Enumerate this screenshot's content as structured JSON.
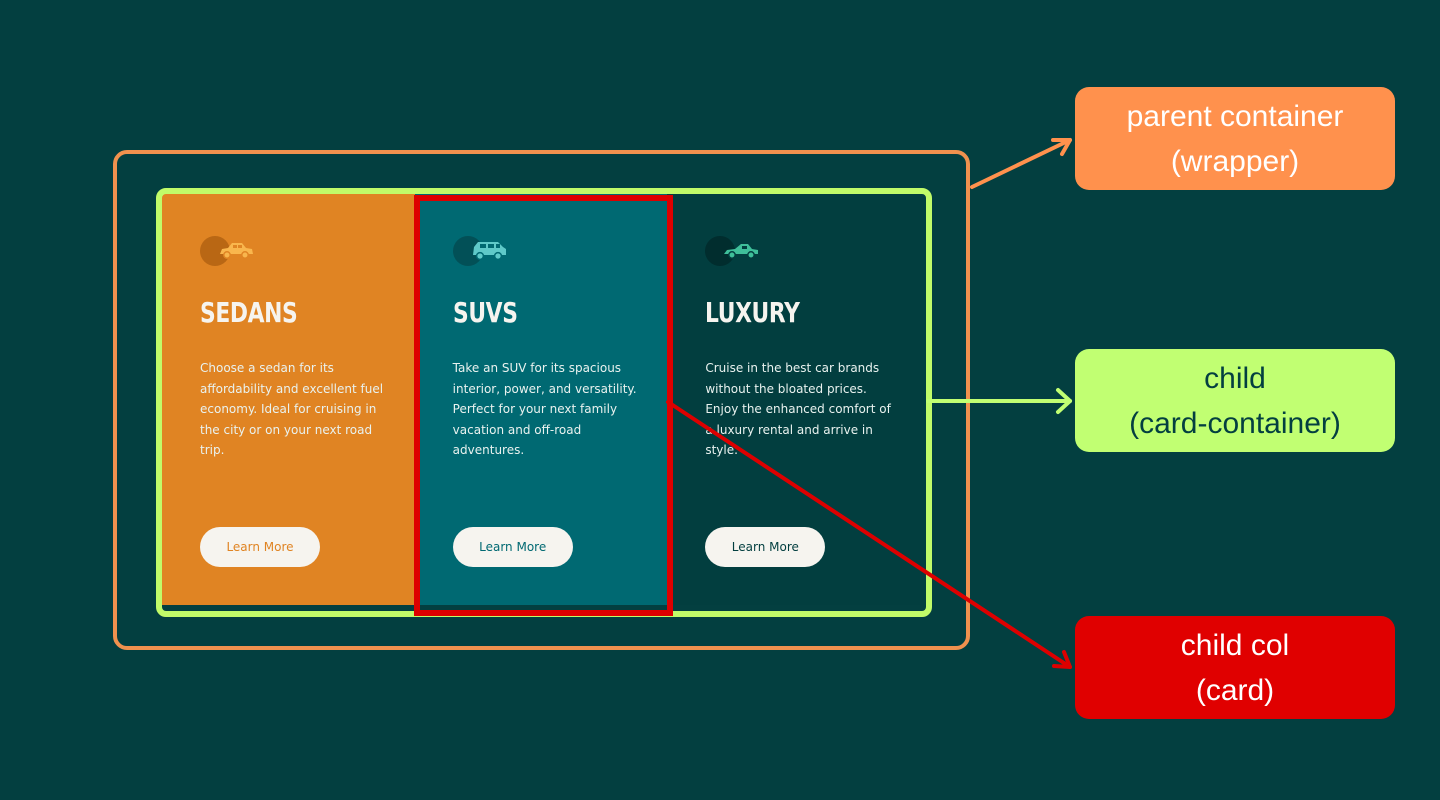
{
  "cards": [
    {
      "id": "sedans",
      "icon": "sedan-car-icon",
      "title": "SEDANS",
      "description": "Choose a sedan for its affordability and excellent fuel economy. Ideal for cruising in the city or on your next road trip.",
      "button_label": "Learn More",
      "background": "#e08423"
    },
    {
      "id": "suvs",
      "icon": "suv-car-icon",
      "title": "SUVS",
      "description": "Take an SUV for its spacious interior, power, and versatility. Perfect for your next family vacation and off-road adventures.",
      "button_label": "Learn More",
      "background": "#006972"
    },
    {
      "id": "luxury",
      "icon": "luxury-car-icon",
      "title": "LUXURY",
      "description": "Cruise in the best car brands without the bloated prices. Enjoy the enhanced comfort of a luxury rental and arrive in style.",
      "button_label": "Learn More",
      "background": "#023e3f"
    }
  ],
  "annotations": {
    "wrapper": {
      "line1": "parent container",
      "line2": "(wrapper)",
      "color": "#ff914d"
    },
    "card_container": {
      "line1": "child",
      "line2": "(card-container)",
      "color": "#c1ff72"
    },
    "card": {
      "line1": "child col",
      "line2": "(card)",
      "color": "#e00000"
    }
  },
  "colors": {
    "background": "#033f40",
    "button_background": "#f6f4ef"
  }
}
